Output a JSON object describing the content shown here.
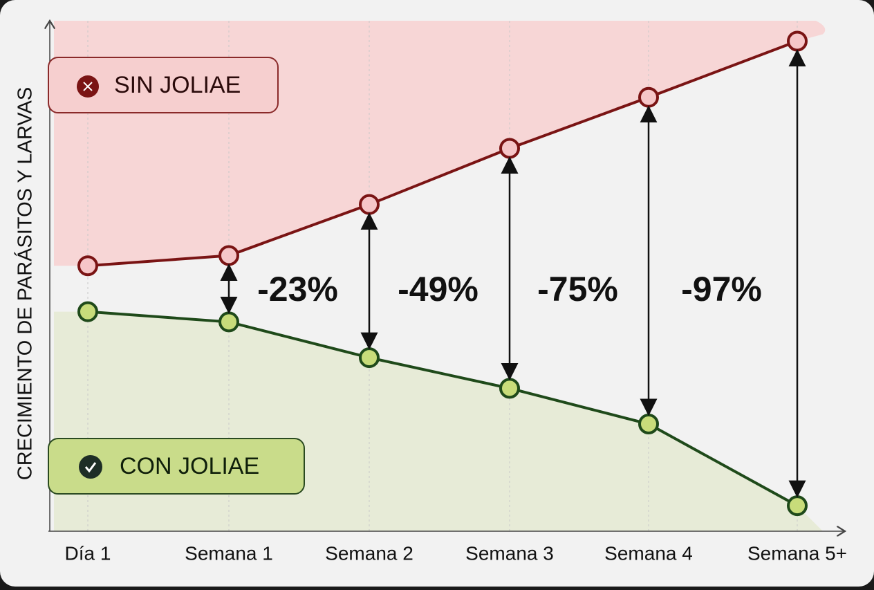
{
  "chart_data": {
    "type": "line",
    "y_label": "CRECIMIENTO DE PARÁSITOS Y LARVAS",
    "categories": [
      "Día 1",
      "Semana 1",
      "Semana 2",
      "Semana 3",
      "Semana 4",
      "Semana 5+"
    ],
    "series": [
      {
        "name": "SIN JOLIAE",
        "color": "#7a1414",
        "values": [
          52,
          54,
          64,
          75,
          85,
          96
        ]
      },
      {
        "name": "CON JOLIAE",
        "color": "#1f4a1a",
        "values": [
          43,
          41,
          34,
          28,
          21,
          5
        ]
      }
    ],
    "annotations": [
      "-23%",
      "-49%",
      "-75%",
      "-97%"
    ],
    "ylim": [
      0,
      100
    ]
  }
}
